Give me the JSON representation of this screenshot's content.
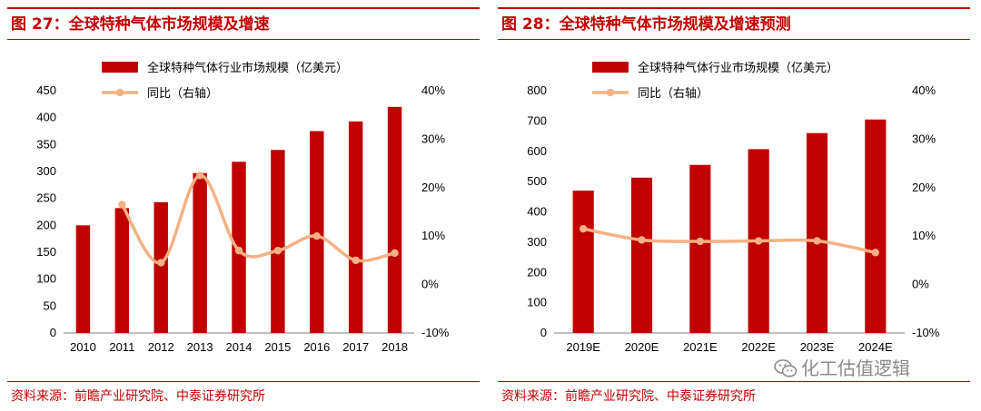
{
  "colors": {
    "accent": "#c00000",
    "bar": "#c00000",
    "line": "#f4b183",
    "watermark": "#8a8a8a"
  },
  "left_panel": {
    "title": "图 27：全球特种气体市场规模及增速",
    "source": "资料来源：前瞻产业研究院、中泰证券研究所"
  },
  "right_panel": {
    "title": "图 28：全球特种气体市场规模及增速预测",
    "source": "资料来源：前瞻产业研究院、中泰证券研究所"
  },
  "watermark": {
    "text": "化工估值逻辑",
    "icon": "wechat-icon"
  },
  "chart_data": [
    {
      "type": "bar",
      "categories": [
        "2010",
        "2011",
        "2012",
        "2013",
        "2014",
        "2015",
        "2016",
        "2017",
        "2018"
      ],
      "series": [
        {
          "name": "全球特种气体行业市场规模（亿美元）",
          "type": "bar",
          "axis": "left",
          "values": [
            200,
            232,
            243,
            297,
            318,
            340,
            375,
            393,
            420
          ]
        },
        {
          "name": "同比（右轴）",
          "type": "line",
          "axis": "right",
          "values": [
            null,
            16.5,
            4.5,
            22.5,
            7.0,
            7.0,
            10.0,
            5.0,
            6.5
          ]
        }
      ],
      "ylim": [
        0,
        450
      ],
      "yticks": [
        0,
        50,
        100,
        150,
        200,
        250,
        300,
        350,
        400,
        450
      ],
      "y2lim": [
        -10,
        40
      ],
      "y2ticks": [
        "-10%",
        "0%",
        "10%",
        "20%",
        "30%",
        "40%"
      ],
      "legend": "top-left"
    },
    {
      "type": "bar",
      "categories": [
        "2019E",
        "2020E",
        "2021E",
        "2022E",
        "2023E",
        "2024E"
      ],
      "series": [
        {
          "name": "全球特种气体行业市场规模（亿美元）",
          "type": "bar",
          "axis": "left",
          "values": [
            470,
            513,
            555,
            607,
            660,
            705
          ]
        },
        {
          "name": "同比（右轴）",
          "type": "line",
          "axis": "right",
          "values": [
            11.5,
            9.2,
            8.9,
            9.0,
            9.0,
            6.6
          ]
        }
      ],
      "ylim": [
        0,
        800
      ],
      "yticks": [
        0,
        100,
        200,
        300,
        400,
        500,
        600,
        700,
        800
      ],
      "y2lim": [
        -10,
        40
      ],
      "y2ticks": [
        "-10%",
        "0%",
        "10%",
        "20%",
        "30%",
        "40%"
      ],
      "legend": "top-left"
    }
  ]
}
